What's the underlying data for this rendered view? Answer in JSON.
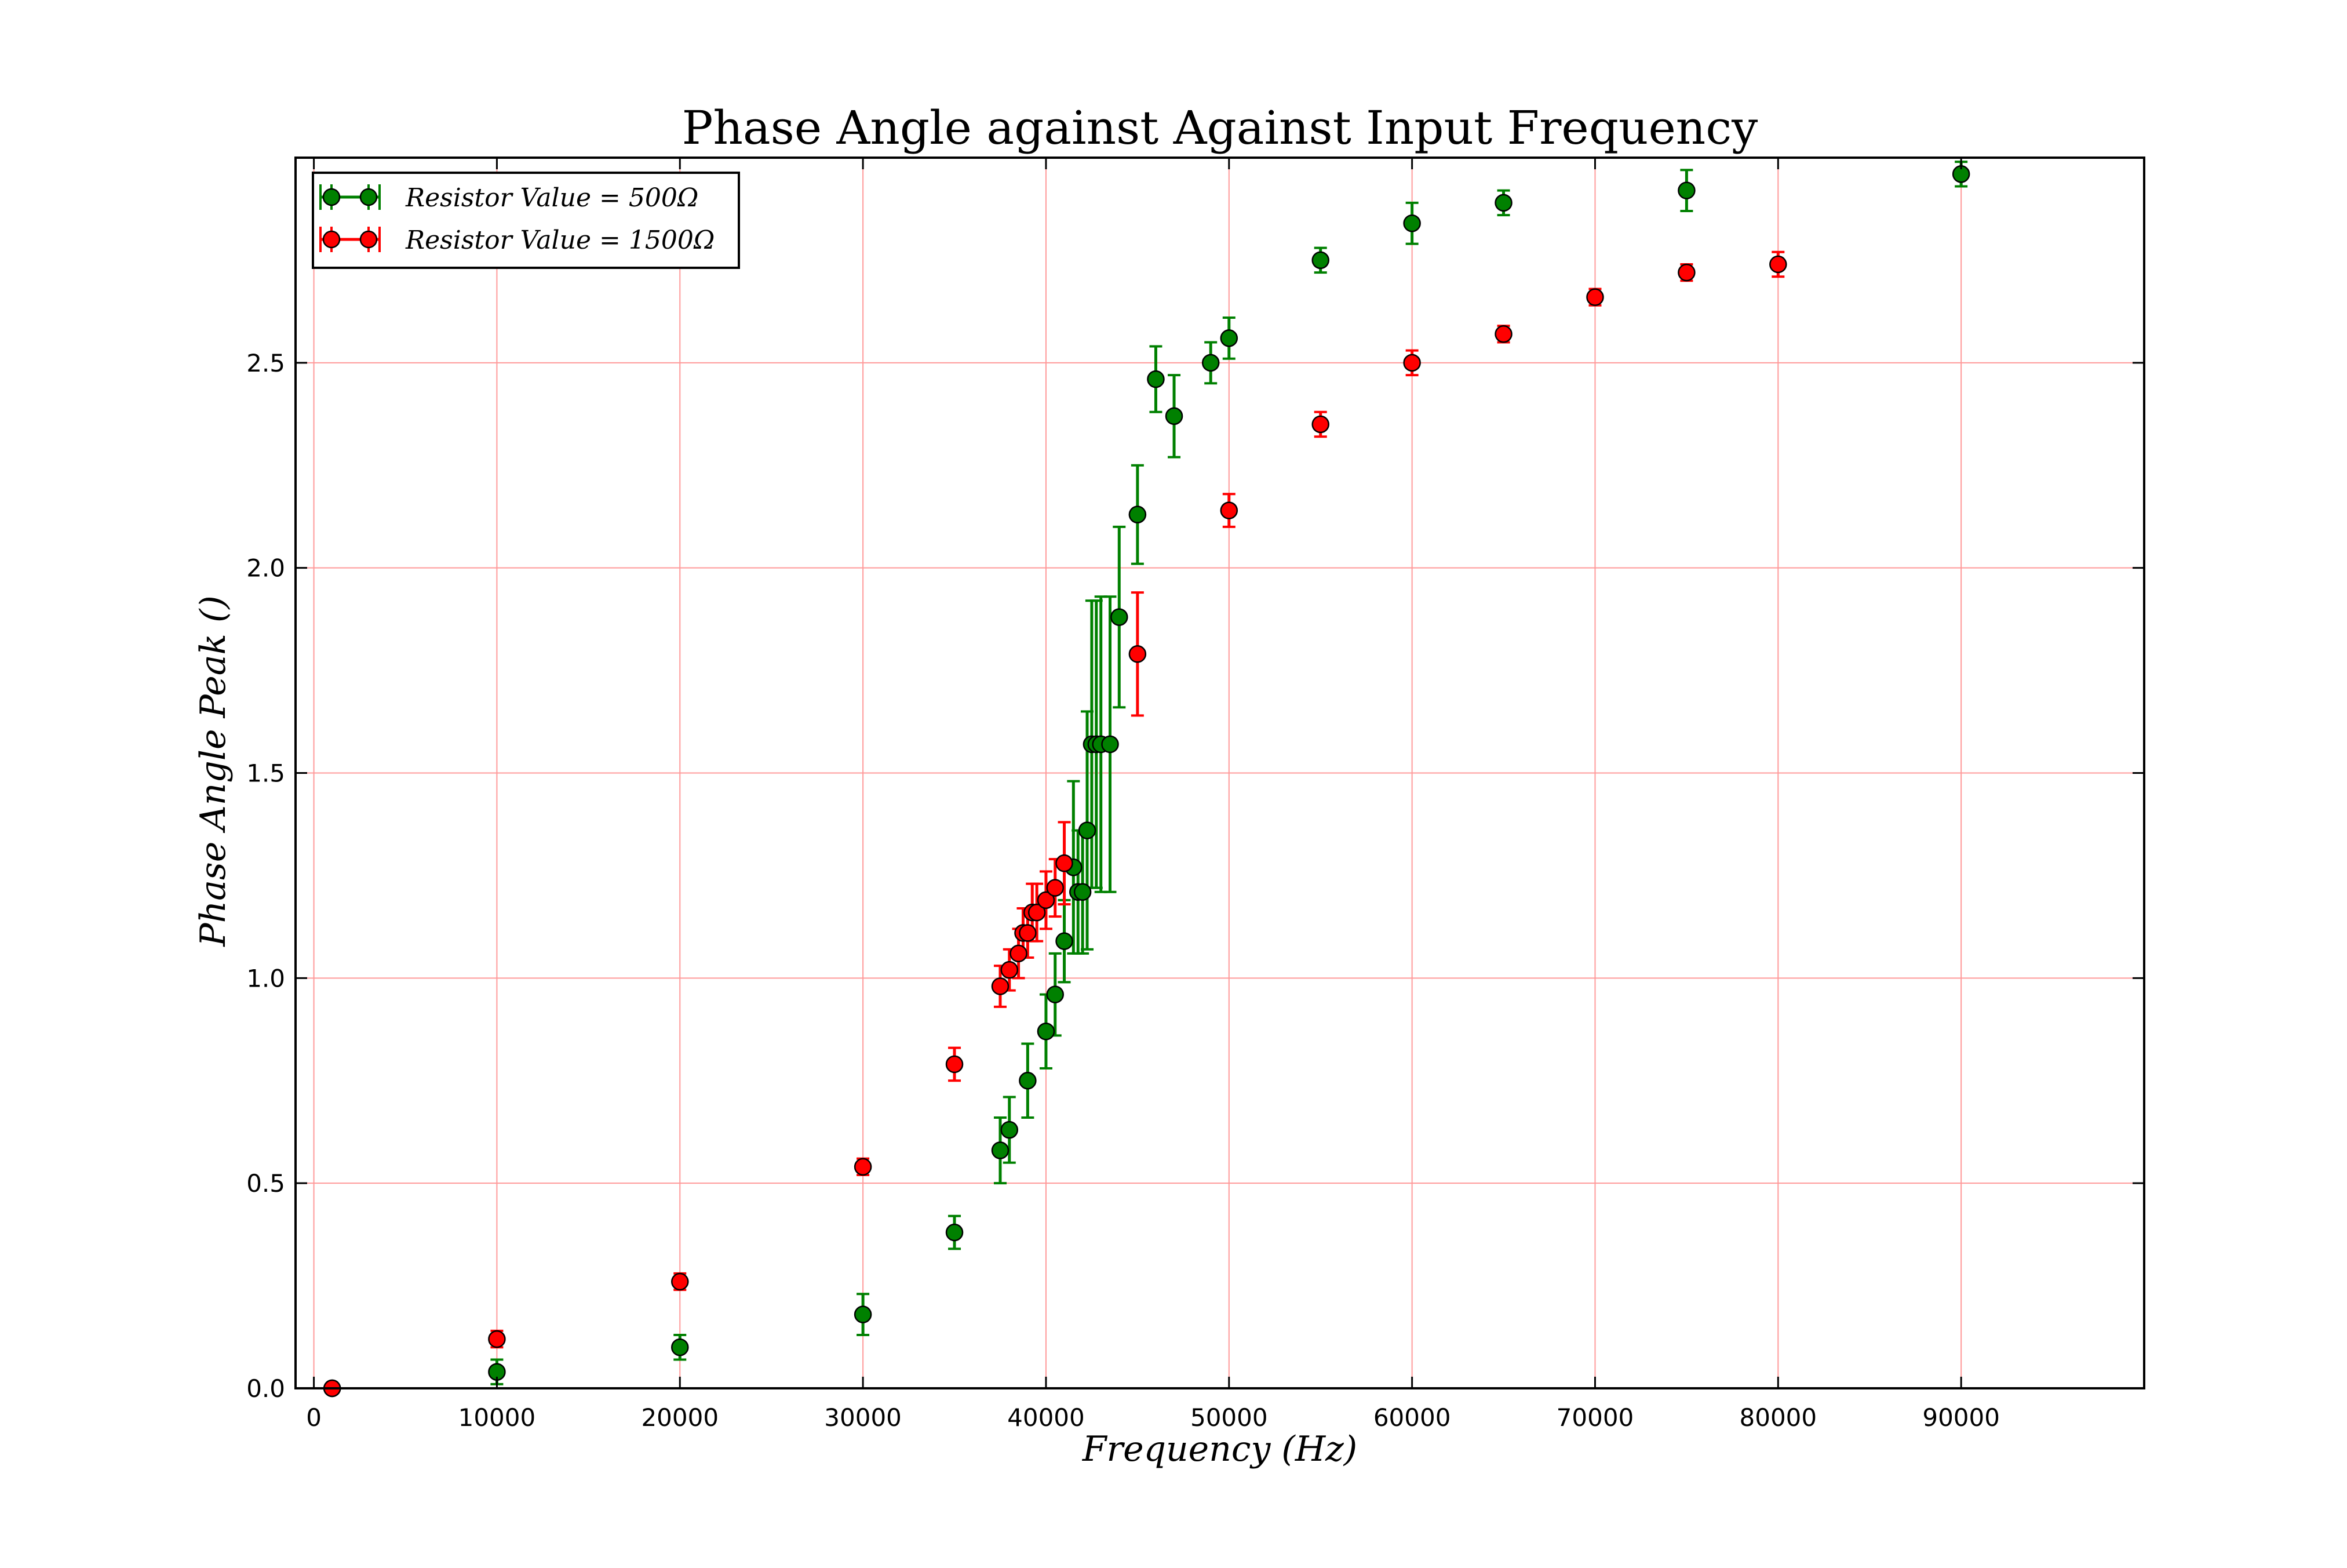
{
  "chart_data": {
    "type": "scatter",
    "title": "Phase Angle against Against Input Frequency",
    "xlabel": "Frequency (Hz)",
    "ylabel": "Phase Angle Peak ()",
    "xlim": [
      -1000,
      100000
    ],
    "ylim": [
      0.0,
      3.0
    ],
    "xticks": [
      0,
      10000,
      20000,
      30000,
      40000,
      50000,
      60000,
      70000,
      80000,
      90000
    ],
    "xtick_labels": [
      "0",
      "10000",
      "20000",
      "30000",
      "40000",
      "50000",
      "60000",
      "70000",
      "80000",
      "90000"
    ],
    "yticks": [
      0.0,
      0.5,
      1.0,
      1.5,
      2.0,
      2.5
    ],
    "ytick_labels": [
      "0.0",
      "0.5",
      "1.0",
      "1.5",
      "2.0",
      "2.5"
    ],
    "grid": true,
    "grid_color": "#ff9999",
    "legend_position": "top-left",
    "series": [
      {
        "name": "Resistor Value = 500Ω",
        "color": "#008000",
        "points": [
          {
            "x": 1000,
            "y": 0.0,
            "err": 0.0
          },
          {
            "x": 10000,
            "y": 0.04,
            "err": 0.03
          },
          {
            "x": 20000,
            "y": 0.1,
            "err": 0.03
          },
          {
            "x": 30000,
            "y": 0.18,
            "err": 0.05
          },
          {
            "x": 35000,
            "y": 0.38,
            "err": 0.04
          },
          {
            "x": 37500,
            "y": 0.58,
            "err": 0.08
          },
          {
            "x": 38000,
            "y": 0.63,
            "err": 0.08
          },
          {
            "x": 39000,
            "y": 0.75,
            "err": 0.09
          },
          {
            "x": 40000,
            "y": 0.87,
            "err": 0.09
          },
          {
            "x": 40500,
            "y": 0.96,
            "err": 0.1
          },
          {
            "x": 41000,
            "y": 1.09,
            "err": 0.1
          },
          {
            "x": 41500,
            "y": 1.27,
            "err": 0.21
          },
          {
            "x": 41750,
            "y": 1.21,
            "err": 0.15
          },
          {
            "x": 42000,
            "y": 1.21,
            "err": 0.15
          },
          {
            "x": 42250,
            "y": 1.36,
            "err": 0.29
          },
          {
            "x": 42500,
            "y": 1.57,
            "err": 0.35
          },
          {
            "x": 42750,
            "y": 1.57,
            "err": 0.35
          },
          {
            "x": 43000,
            "y": 1.57,
            "err": 0.36
          },
          {
            "x": 43500,
            "y": 1.57,
            "err": 0.36
          },
          {
            "x": 44000,
            "y": 1.88,
            "err": 0.22
          },
          {
            "x": 45000,
            "y": 2.13,
            "err": 0.12
          },
          {
            "x": 46000,
            "y": 2.46,
            "err": 0.08
          },
          {
            "x": 47000,
            "y": 2.37,
            "err": 0.1
          },
          {
            "x": 49000,
            "y": 2.5,
            "err": 0.05
          },
          {
            "x": 50000,
            "y": 2.56,
            "err": 0.05
          },
          {
            "x": 55000,
            "y": 2.75,
            "err": 0.03
          },
          {
            "x": 60000,
            "y": 2.84,
            "err": 0.05
          },
          {
            "x": 65000,
            "y": 2.89,
            "err": 0.03
          },
          {
            "x": 75000,
            "y": 2.92,
            "err": 0.05
          },
          {
            "x": 90000,
            "y": 2.96,
            "err": 0.03
          }
        ]
      },
      {
        "name": "Resistor Value = 1500Ω",
        "color": "#ff0000",
        "points": [
          {
            "x": 1000,
            "y": 0.0,
            "err": 0.0
          },
          {
            "x": 10000,
            "y": 0.12,
            "err": 0.02
          },
          {
            "x": 20000,
            "y": 0.26,
            "err": 0.02
          },
          {
            "x": 30000,
            "y": 0.54,
            "err": 0.02
          },
          {
            "x": 35000,
            "y": 0.79,
            "err": 0.04
          },
          {
            "x": 37500,
            "y": 0.98,
            "err": 0.05
          },
          {
            "x": 38000,
            "y": 1.02,
            "err": 0.05
          },
          {
            "x": 38500,
            "y": 1.06,
            "err": 0.06
          },
          {
            "x": 38750,
            "y": 1.11,
            "err": 0.06
          },
          {
            "x": 39000,
            "y": 1.11,
            "err": 0.06
          },
          {
            "x": 39250,
            "y": 1.16,
            "err": 0.07
          },
          {
            "x": 39500,
            "y": 1.16,
            "err": 0.07
          },
          {
            "x": 40000,
            "y": 1.19,
            "err": 0.07
          },
          {
            "x": 40500,
            "y": 1.22,
            "err": 0.07
          },
          {
            "x": 41000,
            "y": 1.28,
            "err": 0.1
          },
          {
            "x": 45000,
            "y": 1.79,
            "err": 0.15
          },
          {
            "x": 50000,
            "y": 2.14,
            "err": 0.04
          },
          {
            "x": 55000,
            "y": 2.35,
            "err": 0.03
          },
          {
            "x": 60000,
            "y": 2.5,
            "err": 0.03
          },
          {
            "x": 65000,
            "y": 2.57,
            "err": 0.02
          },
          {
            "x": 70000,
            "y": 2.66,
            "err": 0.02
          },
          {
            "x": 75000,
            "y": 2.72,
            "err": 0.02
          },
          {
            "x": 80000,
            "y": 2.74,
            "err": 0.03
          }
        ]
      }
    ]
  }
}
